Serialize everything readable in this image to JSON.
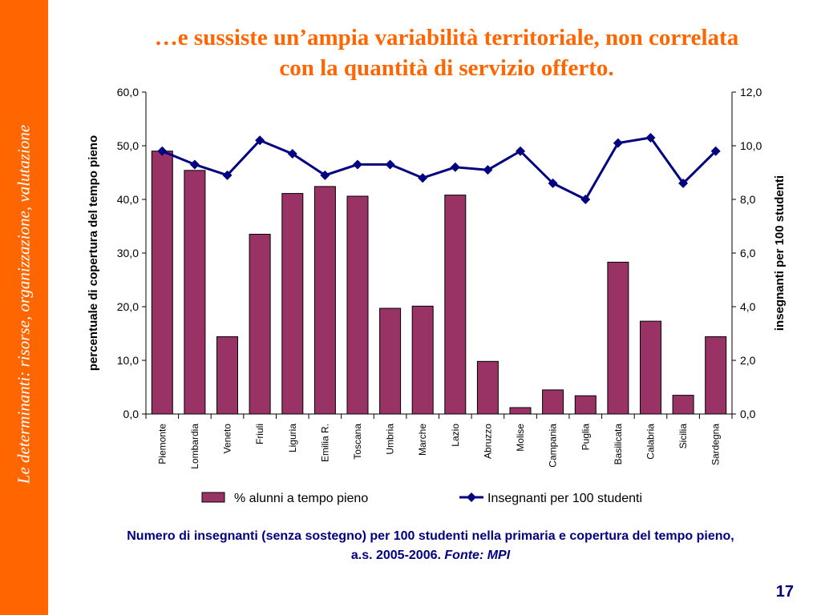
{
  "sidebar": {
    "text": "Le determinanti: risorse, organizzazione, valutazione"
  },
  "slide": {
    "title_line1": "…e sussiste un’ampia variabilità territoriale, non correlata",
    "title_line2": "con la quantità di servizio offerto.",
    "caption_line1": "Numero di insegnanti (senza sostegno) per 100 studenti nella primaria e copertura del tempo pieno,",
    "caption_line2_prefix": "a.s.  2005-2006.",
    "caption_source": "Fonte: MPI",
    "page_number": "17"
  },
  "chart_data": {
    "type": "bar",
    "categories": [
      "Piemonte",
      "Lombardia",
      "Veneto",
      "Friuli",
      "Liguria",
      "Emilia R.",
      "Toscana",
      "Umbria",
      "Marche",
      "Lazio",
      "Abruzzo",
      "Molise",
      "Campania",
      "Puglia",
      "Basilicata",
      "Calabria",
      "Sicilia",
      "Sardegna"
    ],
    "series": [
      {
        "name": "% alunni a tempo pieno",
        "type": "bar",
        "axis": "left",
        "color": "#993366",
        "values": [
          49.0,
          45.4,
          14.4,
          33.5,
          41.1,
          42.4,
          40.6,
          19.7,
          20.1,
          40.8,
          9.8,
          1.2,
          4.5,
          3.4,
          28.3,
          17.3,
          3.5,
          14.4
        ]
      },
      {
        "name": "Insegnanti per 100 studenti",
        "type": "line",
        "axis": "right",
        "color": "#000080",
        "values": [
          9.8,
          9.3,
          8.9,
          10.2,
          9.7,
          8.9,
          9.3,
          9.3,
          8.8,
          9.2,
          9.1,
          9.8,
          8.6,
          8.0,
          10.1,
          10.3,
          8.6,
          9.8
        ]
      }
    ],
    "ylabel": "percentuale di copertura del tempo pieno",
    "y2label": "insegnanti per 100 studenti",
    "ylim": [
      0,
      60
    ],
    "y2lim": [
      0,
      12
    ],
    "yticks": [
      "0,0",
      "10,0",
      "20,0",
      "30,0",
      "40,0",
      "50,0",
      "60,0"
    ],
    "y2ticks": [
      "0,0",
      "2,0",
      "4,0",
      "6,0",
      "8,0",
      "10,0",
      "12,0"
    ],
    "legend_position": "bottom",
    "grid": false
  }
}
